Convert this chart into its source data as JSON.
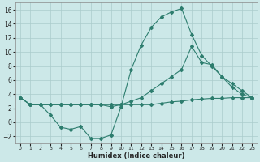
{
  "xlabel": "Humidex (Indice chaleur)",
  "color": "#2d7d6e",
  "bg_color": "#cce8e8",
  "grid_color": "#aacccc",
  "ylim": [
    -3,
    17
  ],
  "xlim": [
    -0.5,
    23.5
  ],
  "yticks": [
    -2,
    0,
    2,
    4,
    6,
    8,
    10,
    12,
    14,
    16
  ],
  "xticks": [
    0,
    1,
    2,
    3,
    4,
    5,
    6,
    7,
    8,
    9,
    10,
    11,
    12,
    13,
    14,
    15,
    16,
    17,
    18,
    19,
    20,
    21,
    22,
    23
  ],
  "line_top_x": [
    0,
    1,
    2,
    3,
    4,
    5,
    6,
    7,
    8,
    9,
    10,
    11,
    12,
    13,
    14,
    15,
    16,
    17,
    18,
    19,
    20,
    21,
    22,
    23
  ],
  "line_top_y": [
    3.5,
    2.5,
    2.5,
    1.0,
    -0.7,
    -1.0,
    -0.6,
    -2.3,
    -2.3,
    -1.8,
    2.2,
    7.5,
    11.0,
    13.5,
    15.0,
    15.7,
    16.2,
    12.5,
    9.5,
    8.0,
    6.5,
    5.5,
    4.5,
    3.5
  ],
  "line_mid_x": [
    0,
    1,
    2,
    3,
    4,
    5,
    6,
    7,
    8,
    9,
    10,
    11,
    12,
    13,
    14,
    15,
    16,
    17,
    18,
    19,
    20,
    21,
    22,
    23
  ],
  "line_mid_y": [
    3.5,
    2.5,
    2.5,
    2.5,
    2.5,
    2.5,
    2.5,
    2.5,
    2.5,
    2.2,
    2.5,
    3.0,
    3.5,
    4.5,
    5.5,
    6.5,
    7.5,
    10.8,
    8.5,
    8.2,
    6.5,
    5.0,
    4.0,
    3.5
  ],
  "line_bot_x": [
    0,
    1,
    2,
    3,
    4,
    5,
    6,
    7,
    8,
    9,
    10,
    11,
    12,
    13,
    14,
    15,
    16,
    17,
    18,
    19,
    20,
    21,
    22,
    23
  ],
  "line_bot_y": [
    3.5,
    2.5,
    2.5,
    2.5,
    2.5,
    2.5,
    2.5,
    2.5,
    2.5,
    2.5,
    2.5,
    2.5,
    2.5,
    2.5,
    2.7,
    2.9,
    3.0,
    3.2,
    3.3,
    3.4,
    3.4,
    3.5,
    3.5,
    3.5
  ]
}
